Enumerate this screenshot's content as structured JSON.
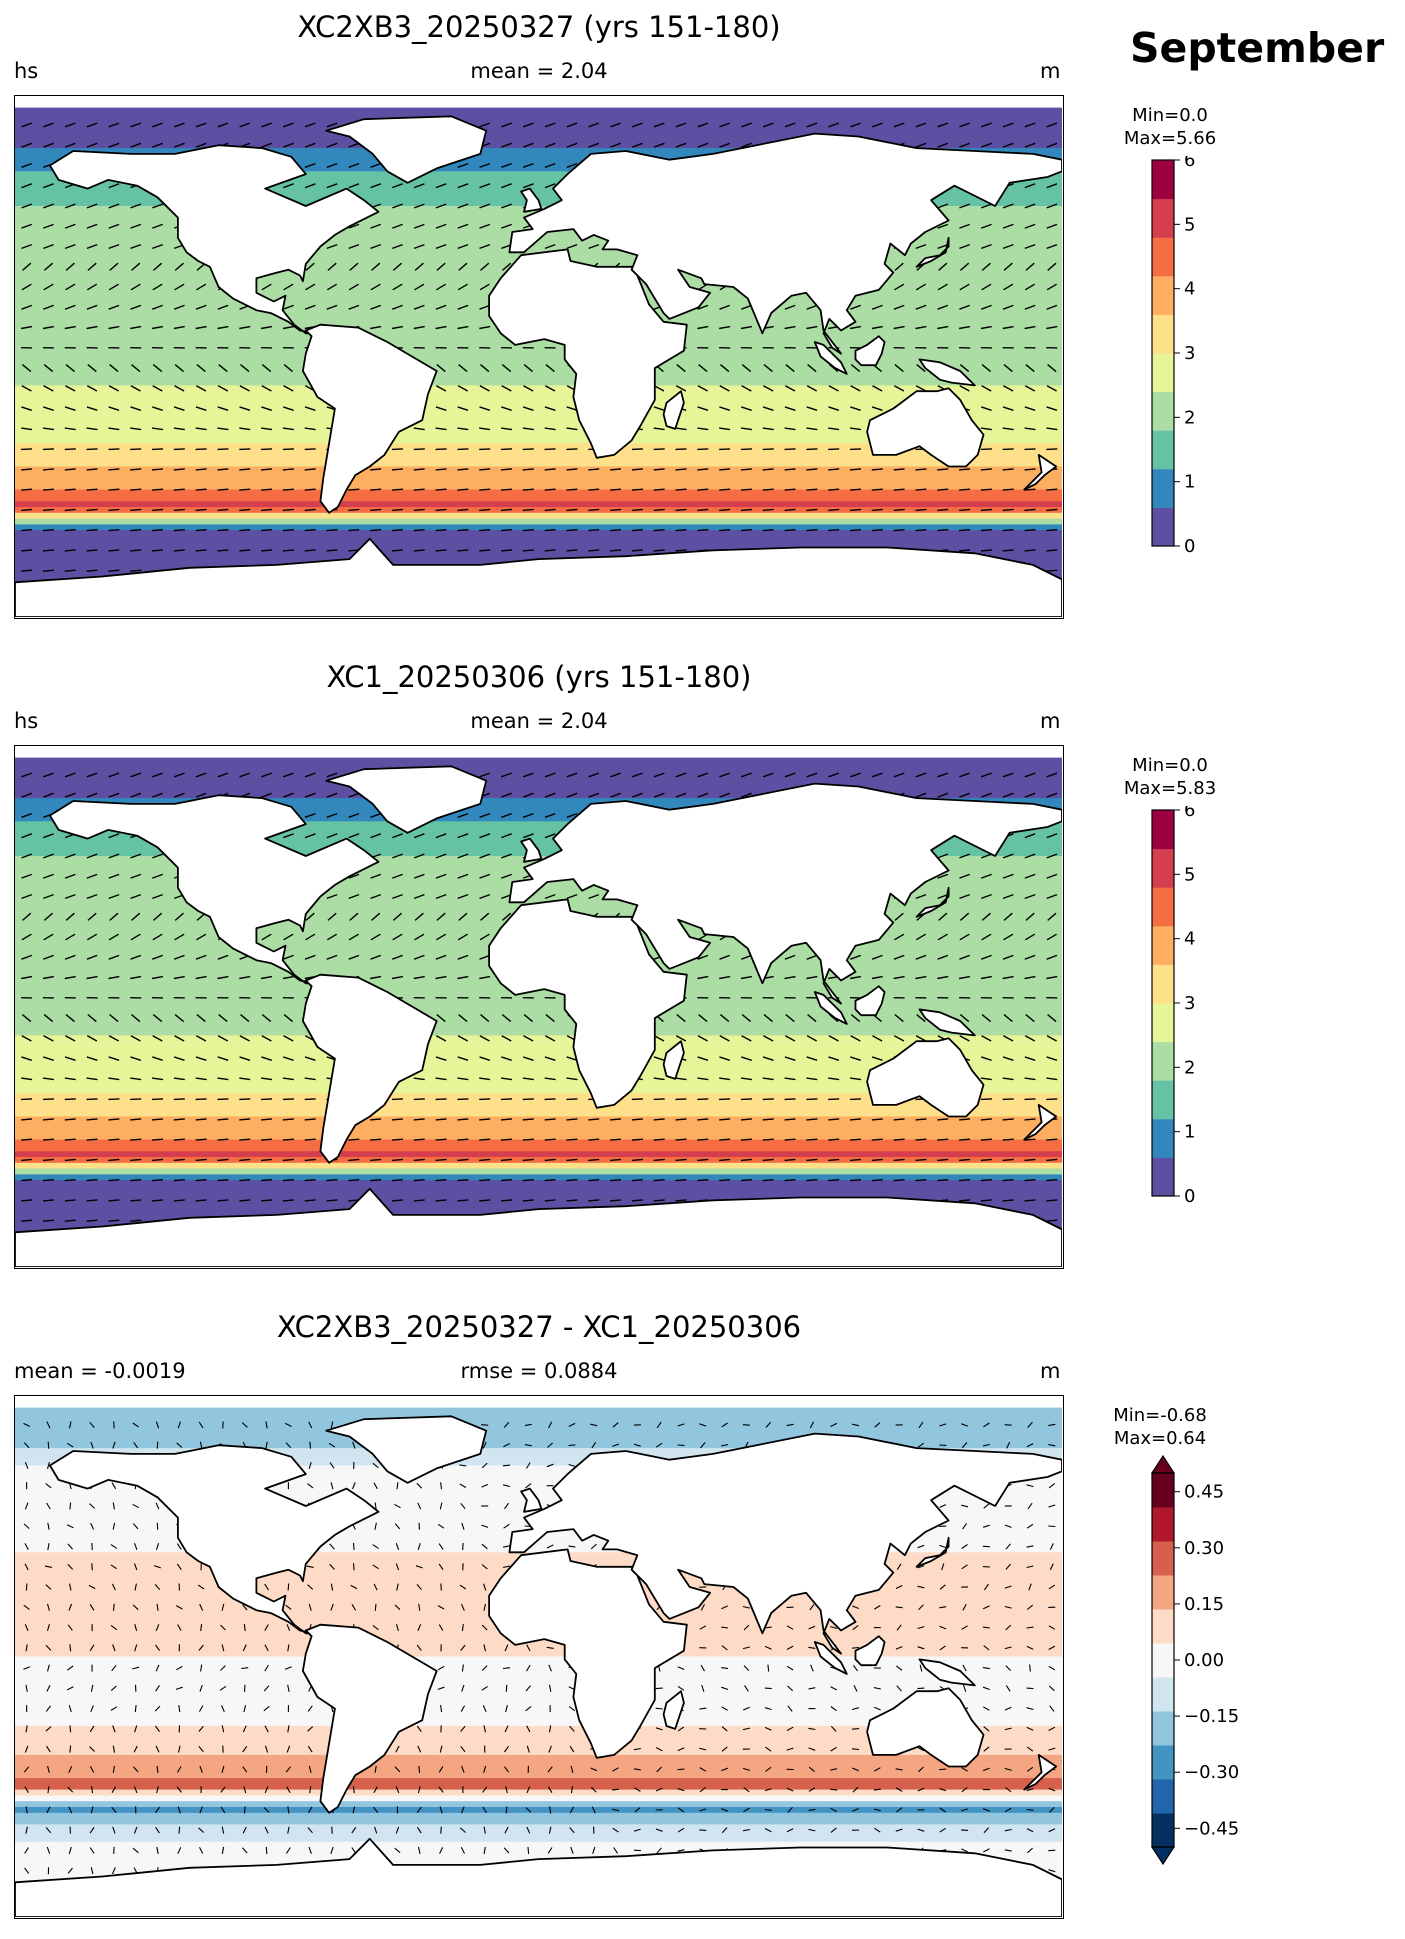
{
  "figure": {
    "month": "September"
  },
  "panels": [
    {
      "id": "p1",
      "title": "XC2XB3_20250327 (yrs 151-180)",
      "left_label": "hs",
      "center_label": "mean = 2.04",
      "right_label": "m",
      "colorbar": {
        "min_text": "Min=0.0",
        "max_text": "Max=5.66",
        "ticks": [
          "0",
          "1",
          "2",
          "3",
          "4",
          "5",
          "6"
        ]
      }
    },
    {
      "id": "p2",
      "title": "XC1_20250306 (yrs 151-180)",
      "left_label": "hs",
      "center_label": "mean = 2.04",
      "right_label": "m",
      "colorbar": {
        "min_text": "Min=0.0",
        "max_text": "Max=5.83",
        "ticks": [
          "0",
          "1",
          "2",
          "3",
          "4",
          "5",
          "6"
        ]
      }
    },
    {
      "id": "p3",
      "title": "XC2XB3_20250327 - XC1_20250306",
      "left_label": "mean = -0.0019",
      "center_label": "rmse = 0.0884",
      "right_label": "m",
      "colorbar": {
        "min_text": "Min=-0.68",
        "max_text": "Max=0.64",
        "ticks": [
          "0.45",
          "0.30",
          "0.15",
          "0.00",
          "−0.15",
          "−0.30",
          "−0.45"
        ]
      }
    }
  ],
  "colors": {
    "hs_levels": [
      "#5e4fa2",
      "#3288bd",
      "#66c2a5",
      "#abdda4",
      "#e6f598",
      "#fee08b",
      "#fdae61",
      "#f46d43",
      "#d53e4f",
      "#9e0142"
    ],
    "diff_levels": [
      "#053061",
      "#2166ac",
      "#4393c3",
      "#92c5de",
      "#d1e5f0",
      "#f7f7f7",
      "#fddbc7",
      "#f4a582",
      "#d6604d",
      "#b2182b",
      "#67001f"
    ]
  },
  "chart_data": [
    {
      "type": "heatmap",
      "title": "XC2XB3_20250327 (yrs 151-180)",
      "variable": "hs",
      "units": "m",
      "mean": 2.04,
      "min": 0.0,
      "max": 5.66,
      "colorbar_range": [
        0,
        6
      ],
      "colorbar_ticks": [
        0,
        1,
        2,
        3,
        4,
        5,
        6
      ],
      "zonal_profile": {
        "lat": [
          75,
          60,
          45,
          30,
          15,
          0,
          -15,
          -30,
          -45,
          -52,
          -60,
          -70
        ],
        "values": [
          0.3,
          1.5,
          2.0,
          1.8,
          2.2,
          2.0,
          2.6,
          3.0,
          4.0,
          5.0,
          0.4,
          0.2
        ]
      }
    },
    {
      "type": "heatmap",
      "title": "XC1_20250306 (yrs 151-180)",
      "variable": "hs",
      "units": "m",
      "mean": 2.04,
      "min": 0.0,
      "max": 5.83,
      "colorbar_range": [
        0,
        6
      ],
      "colorbar_ticks": [
        0,
        1,
        2,
        3,
        4,
        5,
        6
      ],
      "zonal_profile": {
        "lat": [
          75,
          60,
          45,
          30,
          15,
          0,
          -15,
          -30,
          -45,
          -52,
          -60,
          -70
        ],
        "values": [
          0.3,
          1.5,
          2.0,
          1.8,
          2.2,
          2.0,
          2.6,
          3.0,
          4.1,
          5.2,
          0.4,
          0.2
        ]
      }
    },
    {
      "type": "heatmap",
      "title": "XC2XB3_20250327 - XC1_20250306",
      "units": "m",
      "mean": -0.0019,
      "rmse": 0.0884,
      "min": -0.68,
      "max": 0.64,
      "colorbar_range": [
        -0.5,
        0.5
      ],
      "colorbar_ticks": [
        -0.45,
        -0.3,
        -0.15,
        0.0,
        0.15,
        0.3,
        0.45
      ],
      "zonal_profile": {
        "lat": [
          75,
          60,
          45,
          30,
          15,
          0,
          -15,
          -30,
          -45,
          -52,
          -60,
          -70
        ],
        "values": [
          -0.2,
          0.05,
          -0.05,
          0.1,
          0.1,
          0.05,
          -0.05,
          0.1,
          0.3,
          -0.3,
          -0.1,
          0.0
        ]
      }
    }
  ]
}
